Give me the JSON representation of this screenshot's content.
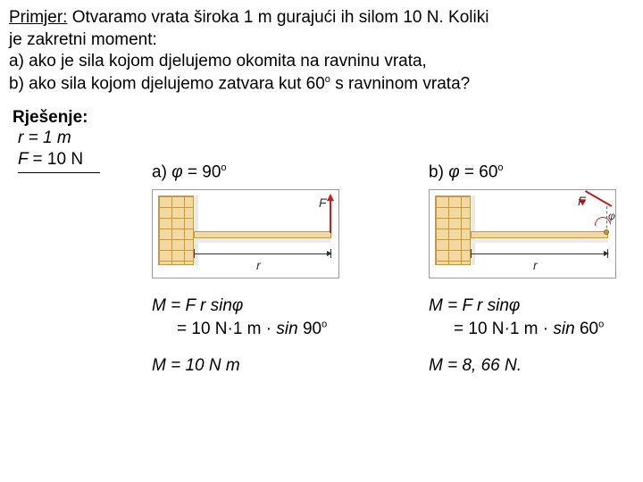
{
  "problem": {
    "label": "Primjer:",
    "line1_rest": " Otvaramo vrata široka  1 m gurajući ih silom 10 N. Koliki",
    "line2": "je zakretni moment:",
    "line3": "a) ako je  sila kojom djelujemo okomita  na ravninu vrata,",
    "line4_pre": "b) ako sila kojom djelujemo zatvara kut 60",
    "line4_sup": "o",
    "line4_post": " s ravninom vrata?"
  },
  "solution_label": "Rješenje:",
  "given": {
    "r": "r = 1 m",
    "F_pre": "F ",
    "F_post": "= 10 N"
  },
  "case_a": {
    "heading_pre": "a) ",
    "phi": "φ",
    "heading_mid": "  = 90",
    "heading_sup": "o",
    "eq1": "M = F r sinφ",
    "eq2_pre": "= 10 N·1 m  ",
    "eq2_dot": "·",
    "eq2_sin": " sin ",
    "eq2_angle": "90",
    "eq2_sup": "o",
    "result": "M = 10 N m"
  },
  "case_b": {
    "heading_pre": "b) ",
    "phi": "φ",
    "heading_mid": "  = 60",
    "heading_sup": "o",
    "eq1": "M = F r sinφ",
    "eq2_pre": "= 10 N·1 m  ",
    "eq2_dot": "·",
    "eq2_sin": " sin ",
    "eq2_angle": "60",
    "eq2_sup": "o",
    "result": "M = 8, 66 N."
  },
  "diagram": {
    "r_label": "r",
    "F_label": "F",
    "phi_label": "φ",
    "colors": {
      "brick_fill": "#f2d9a4",
      "brick_line": "#c29a45",
      "force": "#c02020",
      "text": "#000000",
      "bg": "#ffffff"
    }
  }
}
